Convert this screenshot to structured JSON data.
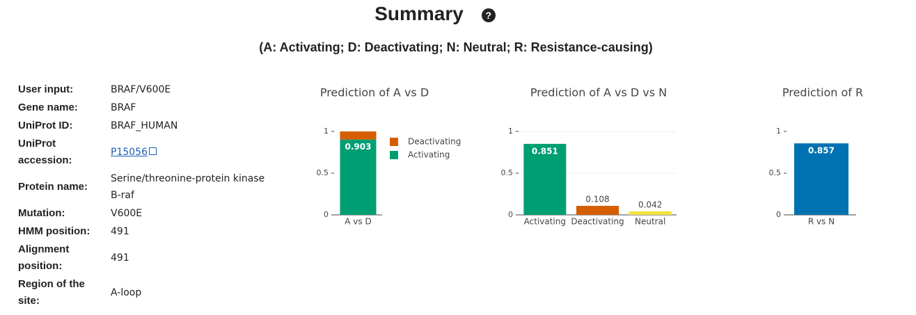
{
  "header": {
    "title": "Summary",
    "help_icon": "?",
    "subtitle": "(A: Activating; D: Deactivating; N: Neutral; R: Resistance-causing)"
  },
  "info": {
    "rows": [
      [
        "User input:",
        "BRAF/V600E"
      ],
      [
        "Gene name:",
        "BRAF"
      ],
      [
        "UniProt ID:",
        "BRAF_HUMAN"
      ],
      [
        "UniProt accession:",
        "P15056"
      ],
      [
        "Protein name:",
        "Serine/threonine-protein kinase B-raf"
      ],
      [
        "Mutation:",
        "V600E"
      ],
      [
        "HMM position:",
        "491"
      ],
      [
        "Alignment position:",
        "491"
      ],
      [
        "Region of the site:",
        "A-loop"
      ]
    ]
  },
  "chart_data": [
    {
      "type": "bar",
      "stacked": true,
      "title": "Prediction of A vs D",
      "categories": [
        "A vs D"
      ],
      "series": [
        {
          "name": "Activating",
          "color": "#009e73",
          "values": [
            0.903
          ],
          "labeled": true
        },
        {
          "name": "Deactivating",
          "color": "#d55e00",
          "values": [
            0.097
          ],
          "labeled": false
        }
      ],
      "ylim": [
        0,
        1
      ],
      "yticks": [
        0,
        0.5,
        1
      ],
      "legend": "right"
    },
    {
      "type": "bar",
      "title": "Prediction of A vs D vs N",
      "categories": [
        "Activating",
        "Deactivating",
        "Neutral"
      ],
      "values": [
        0.851,
        0.108,
        0.042
      ],
      "colors": [
        "#009e73",
        "#d55e00",
        "#f0e442"
      ],
      "ylim": [
        0,
        1
      ],
      "yticks": [
        0,
        0.5,
        1
      ],
      "grid": true
    },
    {
      "type": "bar",
      "title": "Prediction of R",
      "categories": [
        "R vs N"
      ],
      "values": [
        0.857
      ],
      "colors": [
        "#0072b2"
      ],
      "ylim": [
        0,
        1
      ],
      "yticks": [
        0,
        0.5,
        1
      ]
    }
  ]
}
